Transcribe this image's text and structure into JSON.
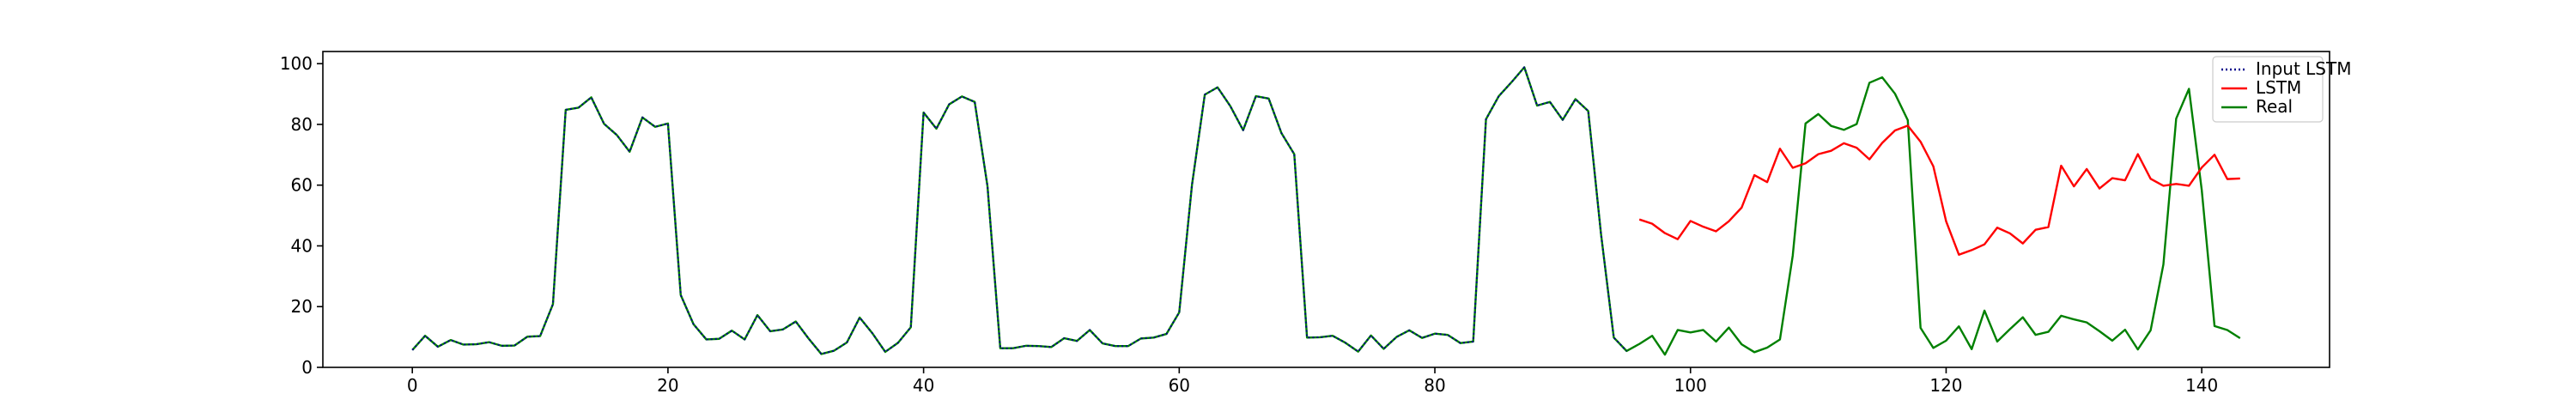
{
  "chart_data": {
    "type": "line",
    "xlim": [
      -7,
      150
    ],
    "ylim": [
      0,
      104
    ],
    "x_ticks": [
      0,
      20,
      40,
      60,
      80,
      100,
      120,
      140
    ],
    "y_ticks": [
      0,
      20,
      40,
      60,
      80,
      100
    ],
    "grid": false,
    "legend_position": "top-right",
    "series": [
      {
        "name": "Input LSTM",
        "color": "#00008b",
        "style": "dotted",
        "x_start": 0,
        "values": [
          5.7,
          10.4,
          6.8,
          9.0,
          7.5,
          7.6,
          8.3,
          7.1,
          7.2,
          10.1,
          10.3,
          20.8,
          84.8,
          85.5,
          88.9,
          80.2,
          76.5,
          71.0,
          82.3,
          79.2,
          80.3,
          23.8,
          14.2,
          9.2,
          9.4,
          12.1,
          9.2,
          17.2,
          11.9,
          12.5,
          15.1,
          9.5,
          4.4,
          5.5,
          8.2,
          16.4,
          11.2,
          5.1,
          8.1,
          13.2,
          83.9,
          78.6,
          86.6,
          89.2,
          87.4,
          59.6,
          6.3,
          6.3,
          7.1,
          7.0,
          6.7,
          9.6,
          8.7,
          12.3,
          7.9,
          7.0,
          7.0,
          9.5,
          9.8,
          11.0,
          18.1,
          60.1,
          89.8,
          92.2,
          86.0,
          78.1,
          89.3,
          88.5,
          77.1,
          70.2,
          9.8,
          9.9,
          10.4,
          8.1,
          5.2,
          10.5,
          6.1,
          10.0,
          12.2,
          9.7,
          11.1,
          10.7,
          8.0,
          8.5,
          81.7,
          89.3,
          93.9,
          98.8,
          86.2,
          87.4,
          81.5,
          88.3,
          84.4,
          43.9,
          9.8,
          5.4
        ]
      },
      {
        "name": "LSTM",
        "color": "#ff0000",
        "style": "solid",
        "x_start": 96,
        "values": [
          48.7,
          47.3,
          44.2,
          42.2,
          48.2,
          46.3,
          44.8,
          48.1,
          52.6,
          63.3,
          61.0,
          72.0,
          65.7,
          67.2,
          70.2,
          71.3,
          73.8,
          72.3,
          68.5,
          73.9,
          78.0,
          79.6,
          74.3,
          66.2,
          48.1,
          37.1,
          38.6,
          40.5,
          46.0,
          44.1,
          40.8,
          45.3,
          46.2,
          66.4,
          59.6,
          65.3,
          58.9,
          62.3,
          61.6,
          70.2,
          62.1,
          59.8,
          60.4,
          59.8,
          65.8,
          70.0,
          62.0,
          62.2
        ]
      },
      {
        "name": "Real",
        "color": "#008000",
        "style": "solid",
        "x_start": 0,
        "values": [
          5.7,
          10.4,
          6.8,
          9.0,
          7.5,
          7.6,
          8.3,
          7.1,
          7.2,
          10.1,
          10.3,
          20.8,
          84.8,
          85.5,
          88.9,
          80.2,
          76.5,
          71.0,
          82.3,
          79.2,
          80.3,
          23.8,
          14.2,
          9.2,
          9.4,
          12.1,
          9.2,
          17.2,
          11.9,
          12.5,
          15.1,
          9.5,
          4.4,
          5.5,
          8.2,
          16.4,
          11.2,
          5.1,
          8.1,
          13.2,
          83.9,
          78.6,
          86.6,
          89.2,
          87.4,
          59.6,
          6.3,
          6.3,
          7.1,
          7.0,
          6.7,
          9.6,
          8.7,
          12.3,
          7.9,
          7.0,
          7.0,
          9.5,
          9.8,
          11.0,
          18.1,
          60.1,
          89.8,
          92.2,
          86.0,
          78.1,
          89.3,
          88.5,
          77.1,
          70.2,
          9.8,
          9.9,
          10.4,
          8.1,
          5.2,
          10.5,
          6.1,
          10.0,
          12.2,
          9.7,
          11.1,
          10.7,
          8.0,
          8.5,
          81.7,
          89.3,
          93.9,
          98.8,
          86.2,
          87.4,
          81.5,
          88.3,
          84.4,
          43.9,
          9.8,
          5.4,
          7.7,
          10.4,
          4.2,
          12.3,
          11.5,
          12.3,
          8.5,
          13.1,
          7.6,
          5.0,
          6.5,
          9.2,
          36.8,
          80.3,
          83.4,
          79.5,
          78.2,
          80.1,
          93.7,
          95.5,
          90.1,
          81.4,
          13.0,
          6.4,
          8.8,
          13.5,
          6.0,
          18.7,
          8.5,
          12.6,
          16.5,
          10.7,
          11.7,
          17.0,
          15.8,
          14.8,
          11.9,
          8.8,
          12.4,
          5.9,
          12.2,
          33.9,
          81.9,
          91.7,
          58.4,
          13.6,
          12.3,
          9.6
        ]
      }
    ]
  }
}
